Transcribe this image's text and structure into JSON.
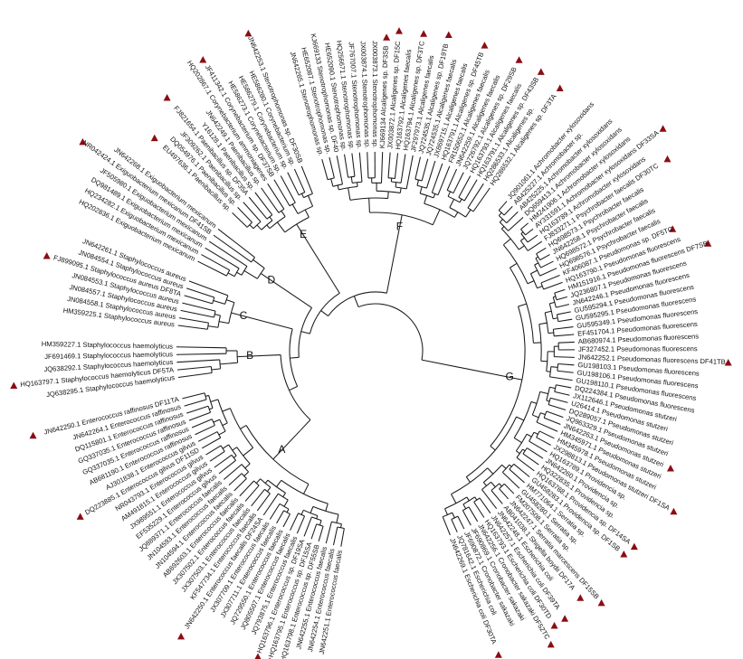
{
  "clades": [
    {
      "name": "A",
      "leaves": [
        {
          "label": "JN642251.1 Enterococcus faecalis"
        },
        {
          "label": "JN642254.1 Enterococcus faecalis"
        },
        {
          "label": "JN642255.1 Enterococcus faecalis"
        },
        {
          "label": "HQ163798.1 Enterococcus sp. DF55SB",
          "marked": true
        },
        {
          "label": "HQ163795.1 Enterococcus sp. DF15SA",
          "marked": true
        },
        {
          "label": "HQ163796.1 Enterococcus sp. DF19SA",
          "marked": true
        },
        {
          "label": "JQ793875.1 Enterococcus faecalis"
        },
        {
          "label": "JQ805507.1 Enterococcus faecalis"
        },
        {
          "label": "JQ729550.1 Enterococcus faecalis"
        },
        {
          "label": "JX307711.1 Enterococcus faecalis"
        },
        {
          "label": "JX307709.1 Enterococcus faecalis"
        },
        {
          "label": "JN642250.1 Enterococcus faecalis DF24SA",
          "marked": true
        },
        {
          "label": "KF547734.1 Enterococcus faecalis"
        },
        {
          "label": "JX307503.1 Enterococcus faecalis"
        },
        {
          "label": "JX307502.1 Enterococcus faecalis"
        },
        {
          "label": "AB692603.1 Enterococcus faecalis"
        },
        {
          "label": "JN104594.1 Enterococcus faecalis"
        },
        {
          "label": "JN104593.1 Enterococcus faecalis"
        },
        {
          "label": "JQ889371.1 Enterococcus faecalis"
        },
        {
          "label": "EF535229.1 Enterococcus gilvus"
        },
        {
          "label": "JX989551.1 Enterococcus gilvus"
        },
        {
          "label": "AM491815.1 Enterococcus gilvus"
        },
        {
          "label": "NR043793.1 Enterococcus gilvus"
        },
        {
          "label": "DQ223885.1 Enterococcus gilvus DF11SD",
          "marked": true
        },
        {
          "label": "AJ301838.1 Enterococcus gilvus"
        },
        {
          "label": "AB681190.1 Enterococcus raffinosus"
        },
        {
          "label": "GQ337035.1 Enterococcus raffinosus"
        },
        {
          "label": "GQ337035.1 Enterococcus raffinosus"
        },
        {
          "label": "DQ115801.1 Enterococcus raffinosus"
        },
        {
          "label": "JN642264.1 Enterococcus raffinosus"
        },
        {
          "label": "JN642250.1 Enterococcus raffinosus DF11TA",
          "marked": true
        }
      ]
    },
    {
      "name": "B",
      "leaves": [
        {
          "label": "JQ638295.1 Staphylococcus haemolyticus"
        },
        {
          "label": "HQ163797.1 Staphylococcus haemolyticus DF5TA",
          "marked": true
        },
        {
          "label": "JQ638292.1 Staphylococcus haemolyticus"
        },
        {
          "label": "JF691469.1 Staphylococcus haemolyticus"
        },
        {
          "label": "HM359227.1 Staphylococcus haemolyticus"
        }
      ]
    },
    {
      "name": "C",
      "leaves": [
        {
          "label": "HM359225.1 Staphylococcus aureus"
        },
        {
          "label": "JN084558.1 Staphylococcus aureus"
        },
        {
          "label": "JN084557.1 Staphylococcus aureus"
        },
        {
          "label": "JN084553.1 Staphylococcus aureus"
        },
        {
          "label": "FJ899095.1 Staphylococcus aureus DF8TA",
          "marked": true
        },
        {
          "label": "JN084554.1 Staphylococcus aureus"
        },
        {
          "label": "JN642261.1 Staphylococcus aureus"
        }
      ]
    },
    {
      "name": "D",
      "leaves": [
        {
          "label": "HQ202836.1 Exiguobacterium mexicanum"
        },
        {
          "label": "HQ234282.1 Exiguobacterium mexicanum"
        },
        {
          "label": "DQ981489.1 Exiguobacterium mexicanum"
        },
        {
          "label": "JF505980.1 Exiguobacterium mexicanum"
        },
        {
          "label": "NR042424.1 Exiguobacterium mexicanum DF41SB",
          "marked": true
        },
        {
          "label": "JN642268.1 Exiguobacterium mexicanum"
        }
      ]
    },
    {
      "name": "E",
      "leaves": [
        {
          "label": "EU497636.1 Paenibacillus sp.",
          "marked": true
        },
        {
          "label": "DQ054976.1 Paenibacillus sp."
        },
        {
          "label": "JF309262.1 Paenibacillus sp."
        },
        {
          "label": "FJ821654.1 Paenibacillus sp. DF35A",
          "marked": true
        },
        {
          "label": "Y16128.1 Paenibacillus sp."
        },
        {
          "label": "JN642249.1 Paenibacillus sp."
        },
        {
          "label": "HQ202867.1 Corynebacterium ammoniagenes"
        },
        {
          "label": "JF411342.1 Corynebacterium sp. DF37SB",
          "marked": true
        },
        {
          "label": "HE586273.1 Corynebacterium sp."
        },
        {
          "label": "HE586279.1 Corynebacterium sp."
        },
        {
          "label": "HE586280.1 Corynebacterium sp."
        },
        {
          "label": "JN642253.1 Stenotrophomonas sp. DF30SB",
          "marked": true
        }
      ]
    },
    {
      "name": "F",
      "leaves": [
        {
          "label": "JN642265.1 Stenotrophomonas sp."
        },
        {
          "label": "HE652087.1 Stenotrophomonas sp."
        },
        {
          "label": "KJ669133 Stenotrophomonas sp. DF40"
        },
        {
          "label": "HE652090.1 Stenotrophomonas sp."
        },
        {
          "label": "HQ256671.1 Stenotrophomonas sp."
        },
        {
          "label": "JF767007.1 Stenotrophomonas sp."
        },
        {
          "label": "JX003874.1 Stenotrophomonas sp."
        },
        {
          "label": "JX003873.1 Stenotrophomonas sp."
        },
        {
          "label": "KJ669134 Alcaligenes sp. DF3SB",
          "marked": true
        },
        {
          "label": "JX003872.1 Alcaligenes sp. DF15C",
          "marked": true
        },
        {
          "label": "HQ163792.1 Alcaligenes faecalis"
        },
        {
          "label": "HQ163794.1 Alcaligenes sp. DF3TC",
          "marked": true
        },
        {
          "label": "JF297973.1 Alcaligenes faecalis"
        },
        {
          "label": "JQ724535.1 Alcaligenes sp. DF19TB",
          "marked": true
        },
        {
          "label": "JQ724535.1 Alcaligenes faecalis"
        },
        {
          "label": "JX869715.1 Alcaligenes faecalis"
        },
        {
          "label": "HQ163791.1 Alcaligenes sp. DF45TB",
          "marked": true
        },
        {
          "label": "FR150652.1 Alcaligenes faecalis"
        },
        {
          "label": "JN642259.1 Alcaligenes faecalis"
        },
        {
          "label": "JQ726792.1 Alcaligenes sp. DF29SB",
          "marked": true
        },
        {
          "label": "HQ163793.1 Alcaligenes faecalis"
        },
        {
          "label": "HQ163791.1 Alcaligenes sp. DF43SB",
          "marked": true
        },
        {
          "label": "HQ286533.1 Alcaligenes sp."
        },
        {
          "label": "HQ286532.1 Alcaligenes sp. DF3TA",
          "marked": true
        }
      ]
    },
    {
      "name": "G",
      "leaves": [
        {
          "label": "JQ901061.1 Achromobacter xylosoxidans"
        },
        {
          "label": "AB425227.1 Achromobacter sp."
        },
        {
          "label": "AB425225.1 Achromobacter xylosoxidans"
        },
        {
          "label": "DQ659413.1 Achromobacter xylosoxidans"
        },
        {
          "label": "HM241906.1 Achromobacter xylosoxidans"
        },
        {
          "label": "AY331591.1 Achromobacter xylosoxidans DF33SA",
          "marked": true
        },
        {
          "label": "HQ163789.1 Achromobacter xylosoxidans"
        },
        {
          "label": "FJ833271.1 Psychrobacter faecalis DF30TC",
          "marked": true
        },
        {
          "label": "HQ698573.1 Psychrobacter faecalis"
        },
        {
          "label": "JN642258.1 Psychrobacter faecalis"
        },
        {
          "label": "HQ698572.1 Psychrobacter faecalis"
        },
        {
          "label": "HQ698576.1 Psychrobacter faecalis"
        },
        {
          "label": "KF406087.1 Pseudomonas sp. DF5TC",
          "marked": true
        },
        {
          "label": "HQ163790.1 Pseudomonas fluorescens"
        },
        {
          "label": "HM151916.1 Pseudomonas fluorescens DF7SB",
          "marked": true
        },
        {
          "label": "JQ236807.1 Pseudomonas fluorescens"
        },
        {
          "label": "JN642246.1 Pseudomonas fluorescens"
        },
        {
          "label": "GU595294.1 Pseudomonas fluorescens"
        },
        {
          "label": "GU595295.1 Pseudomonas fluorescens"
        },
        {
          "label": "GU595349.1 Pseudomonas fluorescens"
        },
        {
          "label": "EF451704.1 Pseudomonas fluorescens"
        },
        {
          "label": "AB680974.1 Pseudomonas fluorescens"
        },
        {
          "label": "JF327452.1 Pseudomonas fluorescens"
        },
        {
          "label": "JN642252.1 Pseudomonas fluorescens DF41TB",
          "marked": true
        },
        {
          "label": "GU198103.1 Pseudomonas fluorescens"
        },
        {
          "label": "GU198106.1 Pseudomonas fluorescens"
        },
        {
          "label": "GU198110.1 Pseudomonas fluorescens"
        },
        {
          "label": "DQ224384.1 Pseudomonas fluorescens"
        },
        {
          "label": "JX112646.1 Pseudomonas stutzeri"
        },
        {
          "label": "U26414.1 Pseudomonas stutzeri"
        },
        {
          "label": "DQ289057.1 Pseudomonas stutzeri"
        },
        {
          "label": "JQ963329.1 Pseudomonas stutzeri"
        },
        {
          "label": "JN642263.1 Pseudomonas stutzeri",
          "marked": true
        },
        {
          "label": "HM345971.1 Pseudomonas stutzeri"
        },
        {
          "label": "HM345978.1 Pseudomonas stutzeri"
        },
        {
          "label": "JX298813.1 Pseudomonas stutzeri DF1SA",
          "marked": true
        },
        {
          "label": "HQ163789.1 Providencia sp."
        },
        {
          "label": "JN642260.1 Providencia sp."
        },
        {
          "label": "HQ322835.1 Providencia sp."
        },
        {
          "label": "HQ163788.1 Providencia sp. DF14SA",
          "marked": true
        },
        {
          "label": "GU458283.1 Providencia sp. DF1SB",
          "marked": true
        },
        {
          "label": "HM771064.1 Serratia sp."
        },
        {
          "label": "GU458280.1 Serratia sp."
        },
        {
          "label": "FM207508.1 Serratia sp."
        },
        {
          "label": "JN642247.1 Serratia marcescens DF15SB",
          "marked": true
        },
        {
          "label": "AB041038.1 Shigella boydii DF17A",
          "marked": true
        },
        {
          "label": "JN642248.1 Escherichia coli"
        },
        {
          "label": "JN642257.1 Escherichia coli DF39TA",
          "marked": true
        },
        {
          "label": "HQ163793.1 Escherichia coli DF30TD",
          "marked": true
        },
        {
          "label": "JN642256.1 Cronobacter sakazaki DF52TC",
          "marked": true
        },
        {
          "label": "JF690869.1 Cronobacter sakazaki"
        },
        {
          "label": "JF690872.1 Cronobacter sakazaki"
        },
        {
          "label": "JQ781642.1 Escherichia coli"
        },
        {
          "label": "JN642269.1 Escherichia coli DF30TA",
          "marked": true
        }
      ]
    }
  ]
}
